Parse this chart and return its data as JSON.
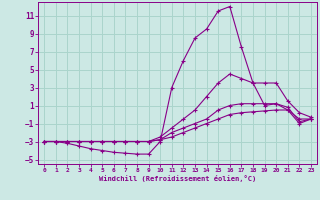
{
  "title": "",
  "xlabel": "Windchill (Refroidissement éolien,°C)",
  "ylabel": "",
  "bg_color": "#cce8e4",
  "grid_color": "#aad4cc",
  "line_color": "#880088",
  "xlim": [
    -0.5,
    23.5
  ],
  "ylim": [
    -5.5,
    12.5
  ],
  "xticks": [
    0,
    1,
    2,
    3,
    4,
    5,
    6,
    7,
    8,
    9,
    10,
    11,
    12,
    13,
    14,
    15,
    16,
    17,
    18,
    19,
    20,
    21,
    22,
    23
  ],
  "yticks": [
    -5,
    -3,
    -1,
    1,
    3,
    5,
    7,
    9,
    11
  ],
  "series": [
    {
      "x": [
        0,
        1,
        2,
        3,
        4,
        5,
        6,
        7,
        8,
        9,
        10,
        11,
        12,
        13,
        14,
        15,
        16,
        17,
        18,
        19,
        20,
        21,
        22,
        23
      ],
      "y": [
        -3,
        -3,
        -3,
        -3,
        -3,
        -3,
        -3,
        -3,
        -3,
        -3,
        -2.8,
        -2.5,
        -2,
        -1.5,
        -1,
        -0.5,
        0,
        0.2,
        0.3,
        0.4,
        0.5,
        0.5,
        -0.5,
        -0.5
      ]
    },
    {
      "x": [
        0,
        1,
        2,
        3,
        4,
        5,
        6,
        7,
        8,
        9,
        10,
        11,
        12,
        13,
        14,
        15,
        16,
        17,
        18,
        19,
        20,
        21,
        22,
        23
      ],
      "y": [
        -3,
        -3,
        -3,
        -3,
        -3,
        -3,
        -3,
        -3,
        -3,
        -3,
        -2.5,
        -1.5,
        -0.5,
        0.5,
        2,
        3.5,
        4.5,
        4,
        3.5,
        3.5,
        3.5,
        1.5,
        0.2,
        -0.3
      ]
    },
    {
      "x": [
        0,
        1,
        2,
        3,
        4,
        5,
        6,
        7,
        8,
        9,
        10,
        11,
        12,
        13,
        14,
        15,
        16,
        17,
        18,
        19,
        20,
        21,
        22,
        23
      ],
      "y": [
        -3,
        -3,
        -3.2,
        -3.5,
        -3.8,
        -4,
        -4.2,
        -4.3,
        -4.4,
        -4.4,
        -3,
        3,
        6,
        8.5,
        9.5,
        11.5,
        12,
        7.5,
        3.5,
        1,
        1.2,
        0.5,
        -1,
        -0.5
      ]
    },
    {
      "x": [
        0,
        1,
        2,
        3,
        4,
        5,
        6,
        7,
        8,
        9,
        10,
        11,
        12,
        13,
        14,
        15,
        16,
        17,
        18,
        19,
        20,
        21,
        22,
        23
      ],
      "y": [
        -3,
        -3,
        -3,
        -3,
        -3,
        -3,
        -3,
        -3,
        -3,
        -3,
        -2.8,
        -2,
        -1.5,
        -1,
        -0.5,
        0.5,
        1,
        1.2,
        1.2,
        1.2,
        1.2,
        0.8,
        -0.8,
        -0.5
      ]
    }
  ]
}
